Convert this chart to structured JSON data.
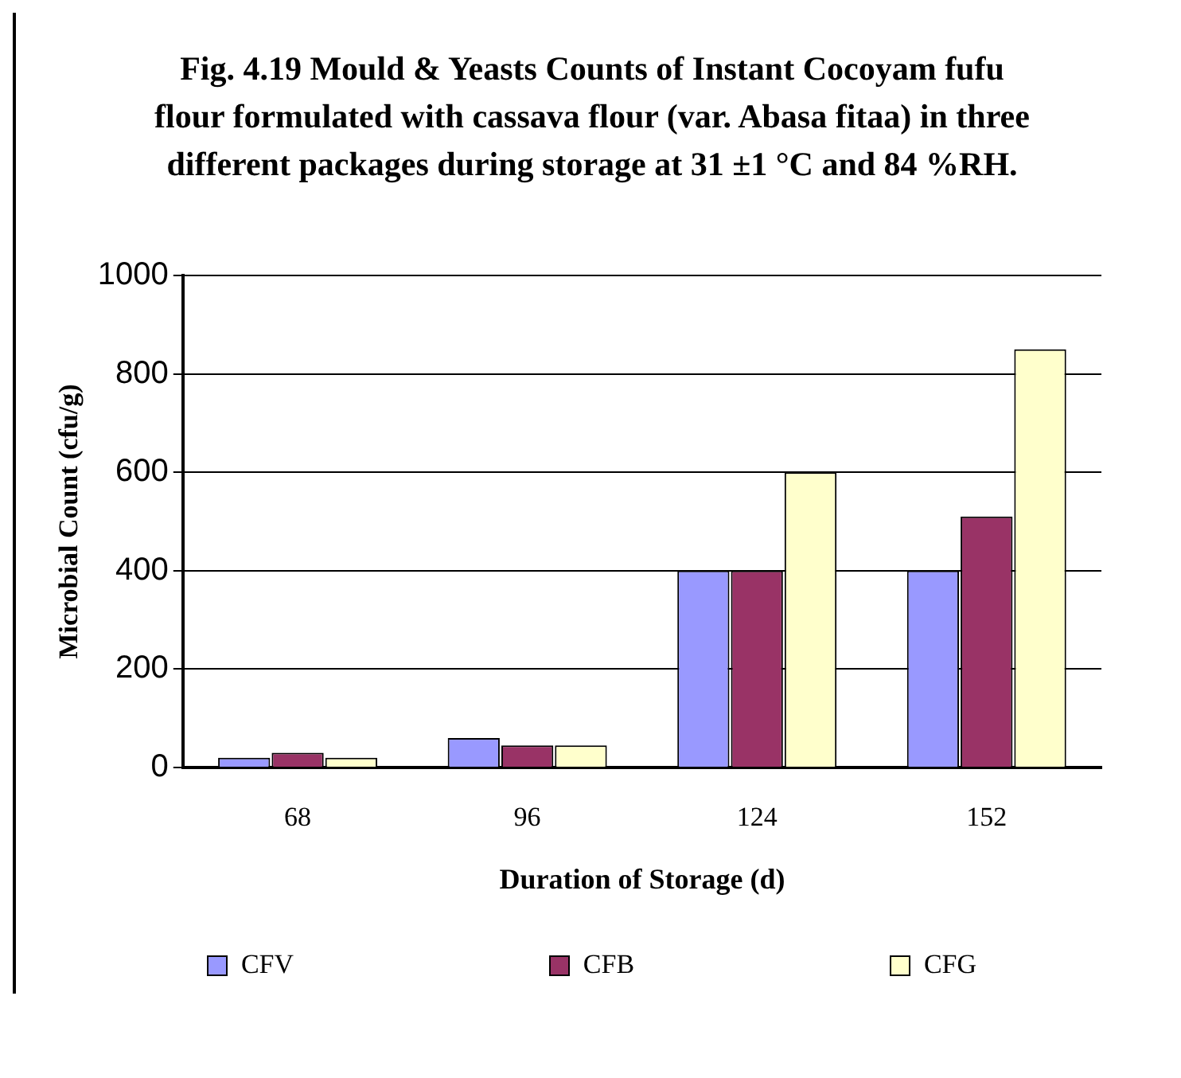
{
  "chart_data": {
    "type": "bar",
    "title": "Fig. 4.19 Mould & Yeasts Counts of Instant Cocoyam fufu flour formulated with cassava flour (var. Abasa fitaa) in three different packages during storage at 31 ±1 °C and 84 %RH.",
    "xlabel": "Duration of Storage (d)",
    "ylabel": "Microbial Count (cfu/g)",
    "categories": [
      "68",
      "96",
      "124",
      "152"
    ],
    "series": [
      {
        "name": "CFV",
        "color": "#9999ff",
        "values": [
          20,
          60,
          400,
          400
        ]
      },
      {
        "name": "CFB",
        "color": "#993366",
        "values": [
          30,
          45,
          400,
          510
        ]
      },
      {
        "name": "CFG",
        "color": "#ffffcc",
        "values": [
          20,
          45,
          600,
          850
        ]
      }
    ],
    "ylim": [
      0,
      1000
    ],
    "yticks": [
      0,
      200,
      400,
      600,
      800,
      1000
    ],
    "grid": "y",
    "legend": "bottom"
  }
}
